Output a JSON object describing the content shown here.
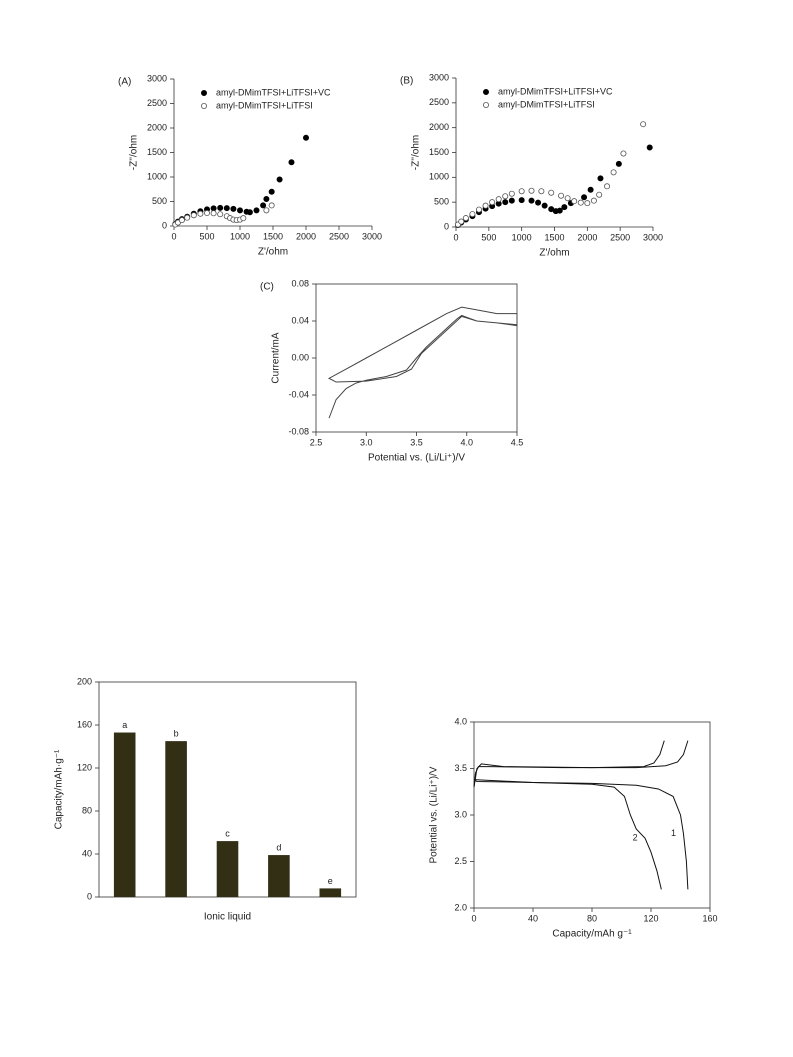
{
  "chart_data": [
    {
      "type": "scatter",
      "label": "(A)",
      "xlabel": "Z'/ohm",
      "ylabel": "-Z''/ohm",
      "xlim": [
        0,
        3000
      ],
      "ylim": [
        0,
        3000
      ],
      "xticks": [
        0,
        500,
        1000,
        1500,
        2000,
        2500,
        3000
      ],
      "yticks": [
        0,
        500,
        1000,
        1500,
        2000,
        2500,
        3000
      ],
      "series": [
        {
          "name": "amyl-DMimTFSI+LiTFSI+VC",
          "color": "#000000",
          "marker": "filled",
          "x": [
            20,
            60,
            120,
            200,
            300,
            400,
            500,
            600,
            700,
            800,
            900,
            1000,
            1100,
            1150,
            1250,
            1350,
            1400,
            1480,
            1600,
            1780,
            2000
          ],
          "values": [
            40,
            90,
            140,
            190,
            250,
            300,
            340,
            360,
            370,
            365,
            350,
            320,
            290,
            280,
            320,
            420,
            550,
            700,
            950,
            1300,
            1800
          ]
        },
        {
          "name": "amyl-DMimTFSI+LiTFSI",
          "color": "#555555",
          "marker": "open",
          "x": [
            20,
            60,
            120,
            200,
            300,
            400,
            500,
            600,
            700,
            800,
            850,
            900,
            950,
            1000,
            1050,
            1400,
            1480
          ],
          "values": [
            30,
            70,
            120,
            170,
            220,
            250,
            265,
            260,
            240,
            200,
            160,
            130,
            120,
            130,
            160,
            320,
            420
          ]
        }
      ]
    },
    {
      "type": "scatter",
      "label": "(B)",
      "xlabel": "Z'/ohm",
      "ylabel": "-Z''/ohm",
      "xlim": [
        0,
        3000
      ],
      "ylim": [
        0,
        3000
      ],
      "xticks": [
        0,
        500,
        1000,
        1500,
        2000,
        2500,
        3000
      ],
      "yticks": [
        0,
        500,
        1000,
        1500,
        2000,
        2500,
        3000
      ],
      "series": [
        {
          "name": "amyl-DMimTFSI+LiTFSI+VC",
          "color": "#000000",
          "marker": "filled",
          "x": [
            30,
            80,
            150,
            250,
            350,
            450,
            550,
            650,
            750,
            850,
            1000,
            1150,
            1250,
            1350,
            1450,
            1520,
            1580,
            1650,
            1750,
            1950,
            2050,
            2200,
            2480,
            2950
          ],
          "values": [
            40,
            90,
            150,
            220,
            300,
            370,
            420,
            470,
            500,
            530,
            540,
            530,
            490,
            430,
            360,
            320,
            330,
            400,
            480,
            600,
            750,
            980,
            1270,
            1600
          ]
        },
        {
          "name": "amyl-DMimTFSI+LiTFSI",
          "color": "#555555",
          "marker": "open",
          "x": [
            30,
            80,
            150,
            250,
            350,
            450,
            550,
            650,
            750,
            850,
            1000,
            1150,
            1300,
            1450,
            1600,
            1700,
            1800,
            1900,
            2000,
            2100,
            2180,
            2300,
            2400,
            2550,
            2850
          ],
          "values": [
            50,
            110,
            180,
            260,
            350,
            430,
            500,
            560,
            620,
            670,
            720,
            730,
            720,
            690,
            630,
            580,
            520,
            490,
            480,
            530,
            650,
            820,
            1100,
            1480,
            2070
          ]
        }
      ]
    },
    {
      "type": "line",
      "label": "(C)",
      "xlabel": "Potential vs. (Li/Li⁺)/V",
      "ylabel": "Current/mA",
      "xlim": [
        2.5,
        4.5
      ],
      "ylim": [
        -0.08,
        0.08
      ],
      "xticks": [
        2.5,
        {
          "value": 3,
          "label": "3.0"
        },
        3.5,
        {
          "value": 4,
          "label": "4.0"
        },
        4.5
      ],
      "yticks": [
        -0.08,
        -0.04,
        {
          "value": 0,
          "label": "0.00"
        },
        0.04,
        0.08
      ],
      "series": [
        {
          "color": "#444444",
          "x": [
            2.63,
            2.7,
            2.8,
            2.9,
            3.0,
            3.2,
            3.4,
            3.5,
            3.6,
            3.7,
            3.8,
            3.9,
            3.95,
            4.0,
            4.1,
            4.3,
            4.5,
            4.5,
            4.3,
            4.1,
            3.95,
            3.8,
            3.5,
            3.2,
            3.0,
            2.8,
            2.63,
            2.7,
            3.0,
            3.3,
            3.45,
            3.55,
            3.7,
            3.85,
            3.95,
            4.1,
            4.5
          ],
          "values": [
            -0.065,
            -0.045,
            -0.033,
            -0.027,
            -0.024,
            -0.02,
            -0.013,
            0.0,
            0.012,
            0.022,
            0.032,
            0.042,
            0.046,
            0.044,
            0.04,
            0.038,
            0.035,
            0.048,
            0.048,
            0.052,
            0.055,
            0.048,
            0.03,
            0.012,
            0.0,
            -0.012,
            -0.022,
            -0.026,
            -0.025,
            -0.02,
            -0.012,
            0.005,
            0.02,
            0.035,
            0.045,
            0.04,
            0.036
          ]
        }
      ]
    },
    {
      "type": "bar",
      "xlabel": "Ionic liquid",
      "ylabel": "Capacity/mAh·g⁻¹",
      "color": "#332f14",
      "categories": [
        "a",
        "b",
        "c",
        "d",
        "e"
      ],
      "values": [
        153,
        145,
        52,
        39,
        8
      ],
      "ylim": [
        0,
        200
      ],
      "yticks": [
        0,
        40,
        80,
        120,
        160,
        200
      ]
    },
    {
      "type": "line",
      "xlabel": "Capacity/mAh g⁻¹",
      "ylabel": "Potential vs. (Li/Li⁺)/V",
      "xlim": [
        0,
        160
      ],
      "ylim": [
        2,
        4
      ],
      "xticks": [
        0,
        40,
        80,
        120,
        160
      ],
      "yticks": [
        {
          "value": 2,
          "label": "2.0"
        },
        2.5,
        {
          "value": 3,
          "label": "3.0"
        },
        3.5,
        {
          "value": 4,
          "label": "4.0"
        }
      ],
      "series": [
        {
          "name": "1",
          "color": "#111111",
          "x": [
            0,
            1,
            3,
            10,
            60,
            110,
            130,
            138,
            142,
            145,
            null,
            0,
            2,
            40,
            80,
            110,
            125,
            135,
            140,
            142,
            144,
            145
          ],
          "values": [
            3.3,
            3.45,
            3.52,
            3.52,
            3.51,
            3.51,
            3.53,
            3.57,
            3.65,
            3.8,
            null,
            3.38,
            3.36,
            3.35,
            3.34,
            3.32,
            3.28,
            3.2,
            3.0,
            2.8,
            2.5,
            2.2
          ]
        },
        {
          "name": "2",
          "color": "#111111",
          "x": [
            0,
            2,
            5,
            20,
            80,
            115,
            122,
            126,
            129,
            null,
            0,
            40,
            80,
            95,
            102,
            106,
            110,
            116,
            120,
            124,
            127
          ],
          "values": [
            3.3,
            3.5,
            3.55,
            3.52,
            3.51,
            3.52,
            3.56,
            3.65,
            3.8,
            null,
            3.38,
            3.35,
            3.33,
            3.3,
            3.2,
            3.0,
            2.85,
            2.75,
            2.6,
            2.4,
            2.2
          ]
        }
      ]
    }
  ]
}
